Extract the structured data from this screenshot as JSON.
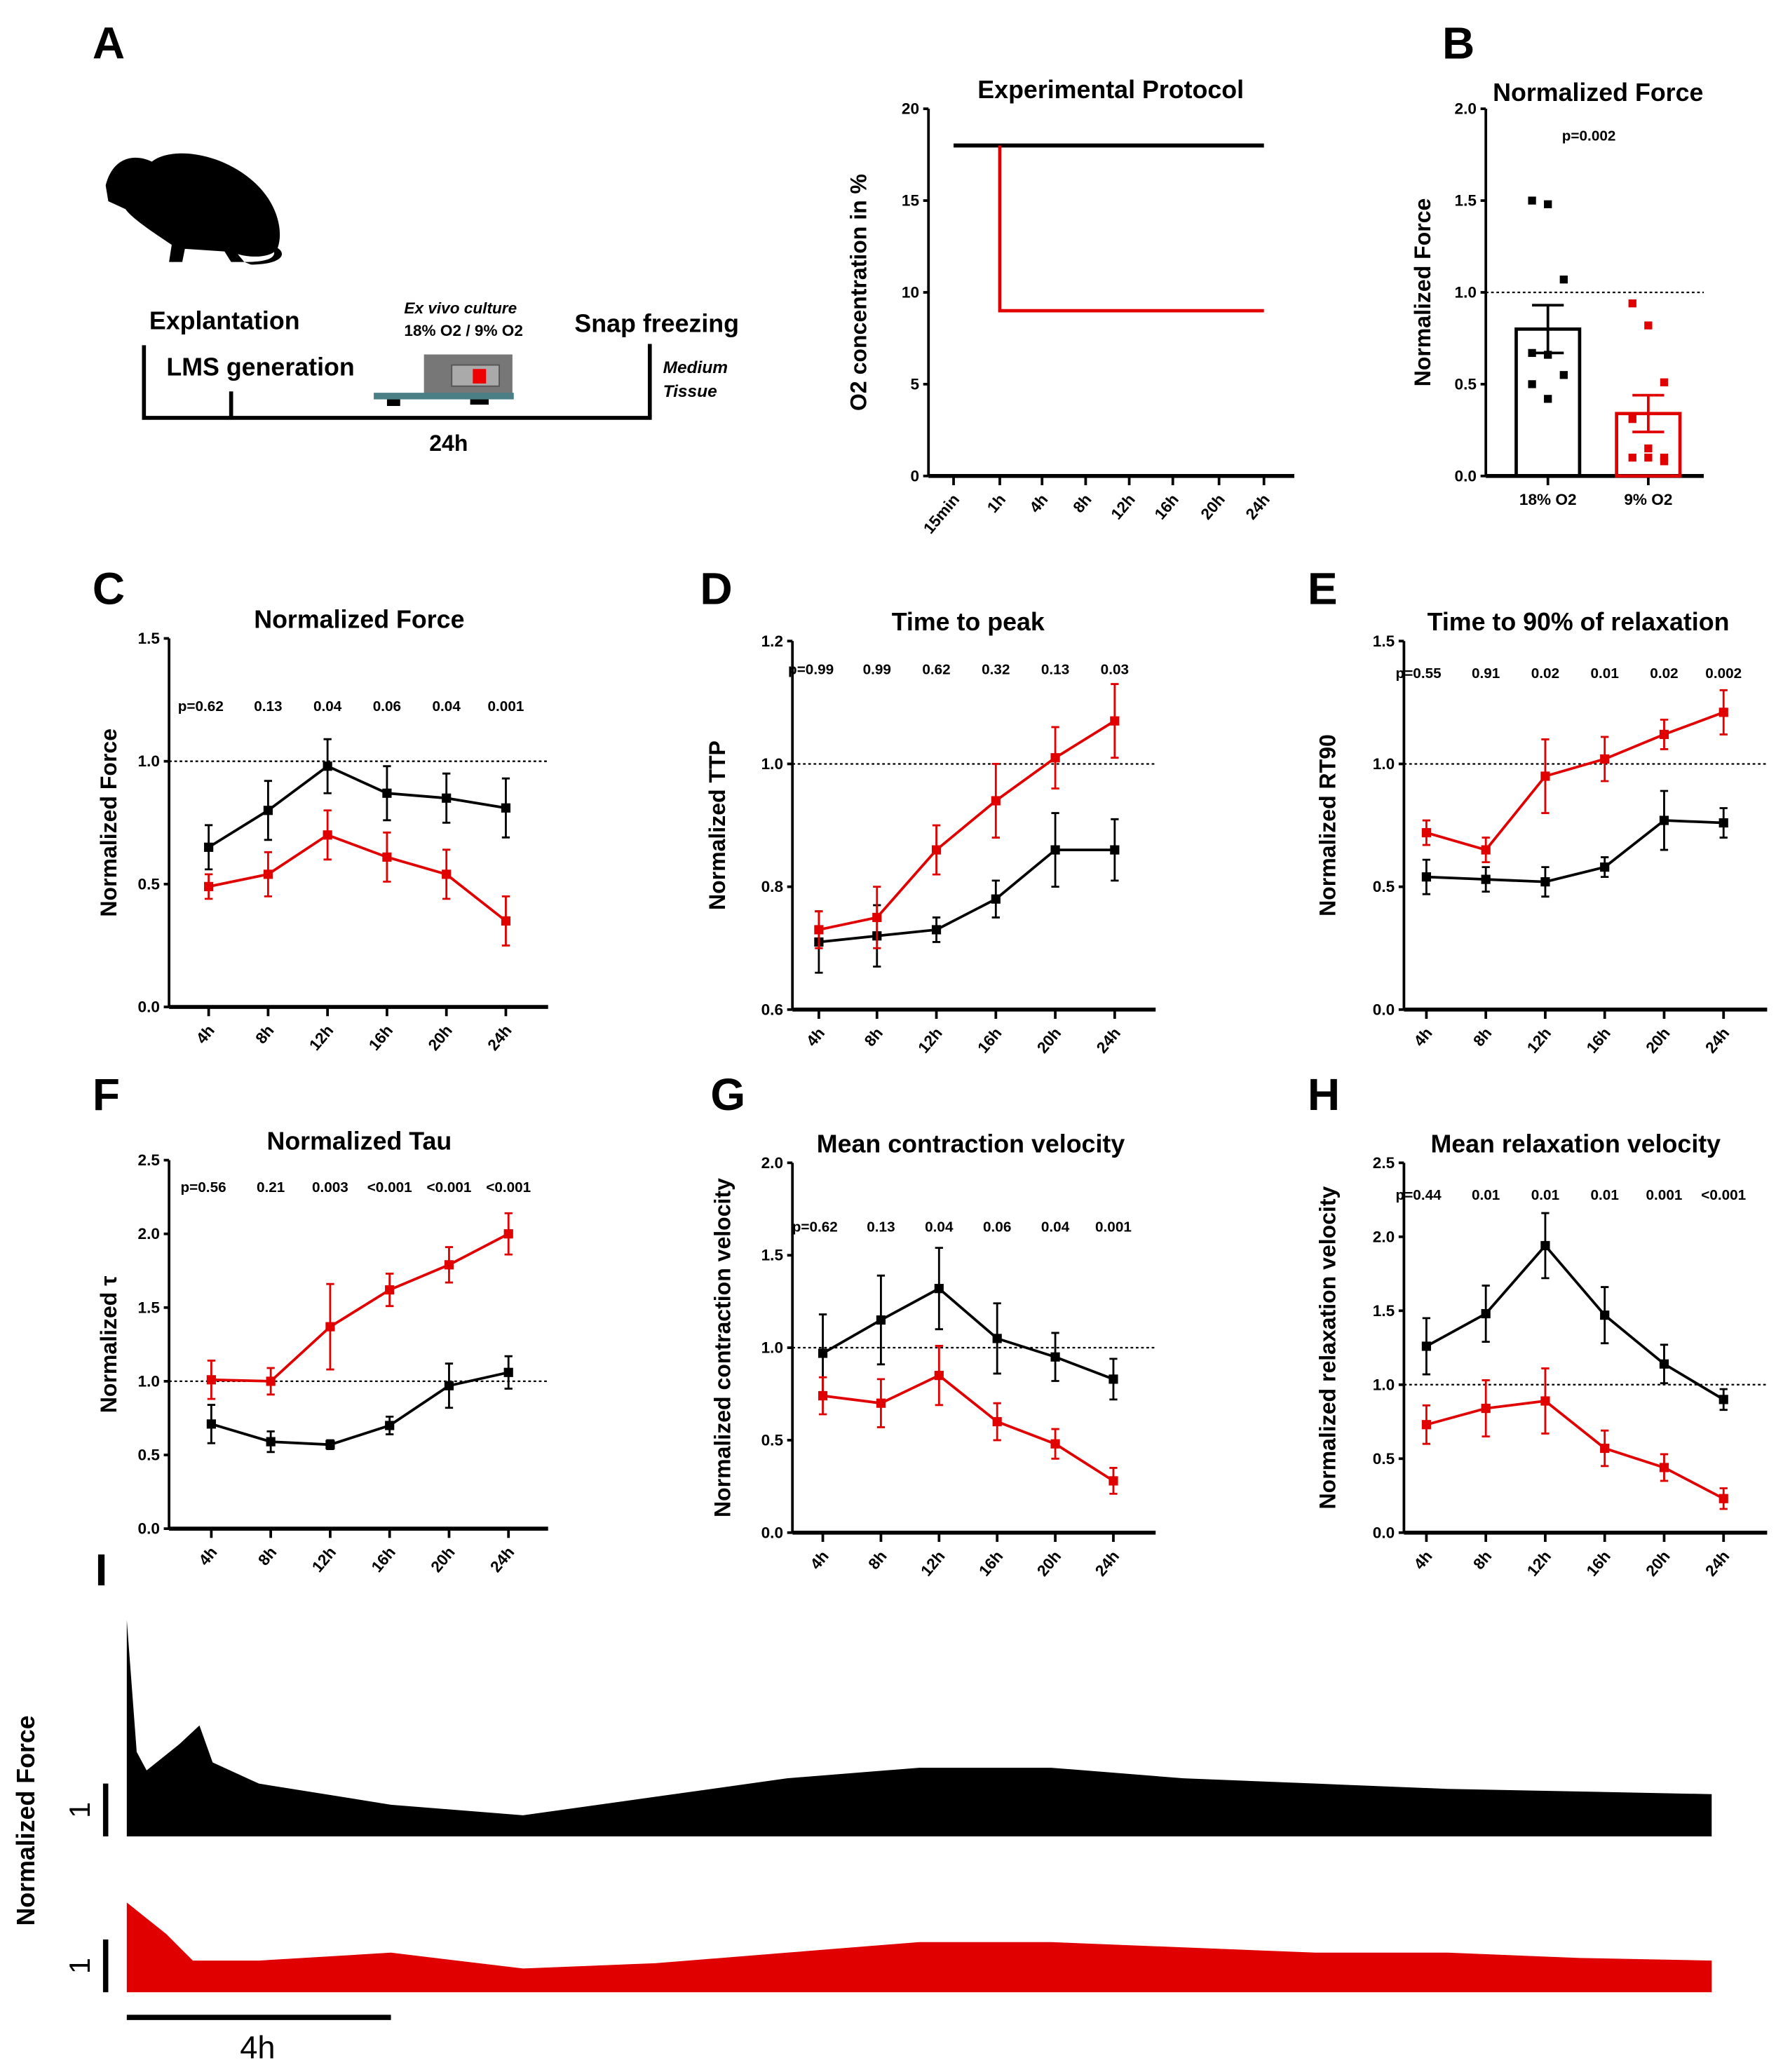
{
  "colors": {
    "ctrl": "#000000",
    "hypoxia": "#e00000"
  },
  "panel_labels": [
    "A",
    "B",
    "C",
    "D",
    "E",
    "F",
    "G",
    "H",
    "I"
  ],
  "schematic": {
    "explantation": "Explantation",
    "lms": "LMS generation",
    "culture_line1": "Ex vivo culture",
    "culture_line2": "18% O2 / 9% O2",
    "snap": "Snap freezing",
    "medium": "Medium",
    "tissue": "Tissue",
    "duration": "24h"
  },
  "chart_data": [
    {
      "id": "A",
      "type": "line",
      "title": "Experimental Protocol",
      "ylabel": "O2 concentration in %",
      "ylim": [
        0,
        20
      ],
      "yticks": [
        "0",
        "5",
        "10",
        "15",
        "20"
      ],
      "categories": [
        "15min",
        "1h",
        "4h",
        "8h",
        "12h",
        "16h",
        "20h",
        "24h"
      ],
      "series": [
        {
          "name": "18% O2",
          "values": [
            18,
            18,
            18,
            18,
            18,
            18,
            18,
            18
          ]
        },
        {
          "name": "9% O2",
          "values": [
            18,
            9,
            9,
            9,
            9,
            9,
            9,
            9
          ]
        }
      ]
    },
    {
      "id": "B",
      "type": "bar",
      "title": "Normalized Force",
      "ylabel": "Normalized Force",
      "ylim": [
        0,
        2
      ],
      "yticks": [
        "0.0",
        "0.5",
        "1.0",
        "1.5",
        "2.0"
      ],
      "pvalue": "p=0.002",
      "categories": [
        "18% O2",
        "9% O2"
      ],
      "values": [
        0.8,
        0.34
      ],
      "errors": [
        0.13,
        0.1
      ],
      "points": [
        [
          1.5,
          1.48,
          1.07,
          0.67,
          0.66,
          0.55,
          0.5,
          0.42
        ],
        [
          0.94,
          0.82,
          0.51,
          0.31,
          0.15,
          0.1,
          0.1,
          0.1,
          0.08
        ]
      ]
    },
    {
      "id": "C",
      "type": "line",
      "title": "Normalized Force",
      "ylabel": "Normalized Force",
      "ylim": [
        0,
        1.5
      ],
      "yticks": [
        "0.0",
        "0.5",
        "1.0",
        "1.5"
      ],
      "ref": 1.0,
      "categories": [
        "4h",
        "8h",
        "12h",
        "16h",
        "20h",
        "24h"
      ],
      "pvalues": [
        "p=0.62",
        "0.13",
        "0.04",
        "0.06",
        "0.04",
        "0.001"
      ],
      "series": [
        {
          "name": "18% O2",
          "values": [
            0.65,
            0.8,
            0.98,
            0.87,
            0.85,
            0.81
          ],
          "errors": [
            0.09,
            0.12,
            0.11,
            0.11,
            0.1,
            0.12
          ]
        },
        {
          "name": "9% O2",
          "values": [
            0.49,
            0.54,
            0.7,
            0.61,
            0.54,
            0.35
          ],
          "errors": [
            0.05,
            0.09,
            0.1,
            0.1,
            0.1,
            0.1
          ]
        }
      ]
    },
    {
      "id": "D",
      "type": "line",
      "title": "Time to peak",
      "ylabel": "Normalized TTP",
      "ylim": [
        0.6,
        1.2
      ],
      "yticks": [
        "0.6",
        "0.8",
        "1.0",
        "1.2"
      ],
      "ref": 1.0,
      "categories": [
        "4h",
        "8h",
        "12h",
        "16h",
        "20h",
        "24h"
      ],
      "pvalues": [
        "p=0.99",
        "0.99",
        "0.62",
        "0.32",
        "0.13",
        "0.03"
      ],
      "series": [
        {
          "name": "18% O2",
          "values": [
            0.71,
            0.72,
            0.73,
            0.78,
            0.86,
            0.86
          ],
          "errors": [
            0.05,
            0.05,
            0.02,
            0.03,
            0.06,
            0.05
          ]
        },
        {
          "name": "9% O2",
          "values": [
            0.73,
            0.75,
            0.86,
            0.94,
            1.01,
            1.07
          ],
          "errors": [
            0.03,
            0.05,
            0.04,
            0.06,
            0.05,
            0.06
          ]
        }
      ]
    },
    {
      "id": "E",
      "type": "line",
      "title": "Time to 90% of relaxation",
      "ylabel": "Normalized RT90",
      "ylim": [
        0,
        1.5
      ],
      "yticks": [
        "0.0",
        "0.5",
        "1.0",
        "1.5"
      ],
      "ref": 1.0,
      "categories": [
        "4h",
        "8h",
        "12h",
        "16h",
        "20h",
        "24h"
      ],
      "pvalues": [
        "p=0.55",
        "0.91",
        "0.02",
        "0.01",
        "0.02",
        "0.002"
      ],
      "series": [
        {
          "name": "18% O2",
          "values": [
            0.54,
            0.53,
            0.52,
            0.58,
            0.77,
            0.76
          ],
          "errors": [
            0.07,
            0.05,
            0.06,
            0.04,
            0.12,
            0.06
          ]
        },
        {
          "name": "9% O2",
          "values": [
            0.72,
            0.65,
            0.95,
            1.02,
            1.12,
            1.21
          ],
          "errors": [
            0.05,
            0.05,
            0.15,
            0.09,
            0.06,
            0.09
          ]
        }
      ]
    },
    {
      "id": "F",
      "type": "line",
      "title": "Normalized Tau",
      "ylabel": "Normalized τ",
      "ylim": [
        0,
        2.5
      ],
      "yticks": [
        "0.0",
        "0.5",
        "1.0",
        "1.5",
        "2.0",
        "2.5"
      ],
      "ref": 1.0,
      "categories": [
        "4h",
        "8h",
        "12h",
        "16h",
        "20h",
        "24h"
      ],
      "pvalues": [
        "p=0.56",
        "0.21",
        "0.003",
        "<0.001",
        "<0.001",
        "<0.001"
      ],
      "series": [
        {
          "name": "18% O2",
          "values": [
            0.71,
            0.59,
            0.57,
            0.7,
            0.97,
            1.06
          ],
          "errors": [
            0.13,
            0.07,
            0.03,
            0.06,
            0.15,
            0.11
          ]
        },
        {
          "name": "9% O2",
          "values": [
            1.01,
            1.0,
            1.37,
            1.62,
            1.79,
            2.0
          ],
          "errors": [
            0.13,
            0.09,
            0.29,
            0.11,
            0.12,
            0.14
          ]
        }
      ]
    },
    {
      "id": "G",
      "type": "line",
      "title": "Mean contraction velocity",
      "ylabel": "Normalized contraction velocity",
      "ylim": [
        0,
        2
      ],
      "yticks": [
        "0.0",
        "0.5",
        "1.0",
        "1.5",
        "2.0"
      ],
      "ref": 1.0,
      "categories": [
        "4h",
        "8h",
        "12h",
        "16h",
        "20h",
        "24h"
      ],
      "pvalues": [
        "p=0.62",
        "0.13",
        "0.04",
        "0.06",
        "0.04",
        "0.001"
      ],
      "series": [
        {
          "name": "18% O2",
          "values": [
            0.97,
            1.15,
            1.32,
            1.05,
            0.95,
            0.83
          ],
          "errors": [
            0.21,
            0.24,
            0.22,
            0.19,
            0.13,
            0.11
          ]
        },
        {
          "name": "9% O2",
          "values": [
            0.74,
            0.7,
            0.85,
            0.6,
            0.48,
            0.28
          ],
          "errors": [
            0.1,
            0.13,
            0.16,
            0.1,
            0.08,
            0.07
          ]
        }
      ]
    },
    {
      "id": "H",
      "type": "line",
      "title": "Mean relaxation velocity",
      "ylabel": "Normalized relaxation velocity",
      "ylim": [
        0,
        2.5
      ],
      "yticks": [
        "0.0",
        "0.5",
        "1.0",
        "1.5",
        "2.0",
        "2.5"
      ],
      "ref": 1.0,
      "categories": [
        "4h",
        "8h",
        "12h",
        "16h",
        "20h",
        "24h"
      ],
      "pvalues": [
        "p=0.44",
        "0.01",
        "0.01",
        "0.01",
        "0.001",
        "<0.001"
      ],
      "series": [
        {
          "name": "18% O2",
          "values": [
            1.26,
            1.48,
            1.94,
            1.47,
            1.14,
            0.9
          ],
          "errors": [
            0.19,
            0.19,
            0.22,
            0.19,
            0.13,
            0.07
          ]
        },
        {
          "name": "9% O2",
          "values": [
            0.73,
            0.84,
            0.89,
            0.57,
            0.44,
            0.23
          ],
          "errors": [
            0.13,
            0.19,
            0.22,
            0.12,
            0.09,
            0.07
          ]
        }
      ]
    },
    {
      "id": "I",
      "type": "area",
      "ylabel": "Normalized Force",
      "scale_label": "1",
      "time_scale_label": "4h",
      "traces": [
        {
          "name": "18% O2",
          "t": [
            0,
            0.15,
            0.3,
            0.8,
            1.1,
            1.3,
            2,
            4,
            6,
            8,
            10,
            12,
            14,
            16,
            18,
            20,
            24
          ],
          "amp": [
            4.1,
            1.6,
            1.25,
            1.75,
            2.1,
            1.4,
            1.0,
            0.6,
            0.4,
            0.75,
            1.1,
            1.3,
            1.3,
            1.1,
            1.0,
            0.9,
            0.8
          ]
        },
        {
          "name": "9% O2",
          "t": [
            0,
            0.3,
            0.6,
            1,
            2,
            4,
            6,
            8,
            10,
            12,
            14,
            16,
            18,
            20,
            22,
            24
          ],
          "amp": [
            1.7,
            1.4,
            1.1,
            0.6,
            0.6,
            0.75,
            0.45,
            0.55,
            0.75,
            0.95,
            0.95,
            0.85,
            0.75,
            0.75,
            0.65,
            0.6
          ]
        }
      ]
    }
  ]
}
